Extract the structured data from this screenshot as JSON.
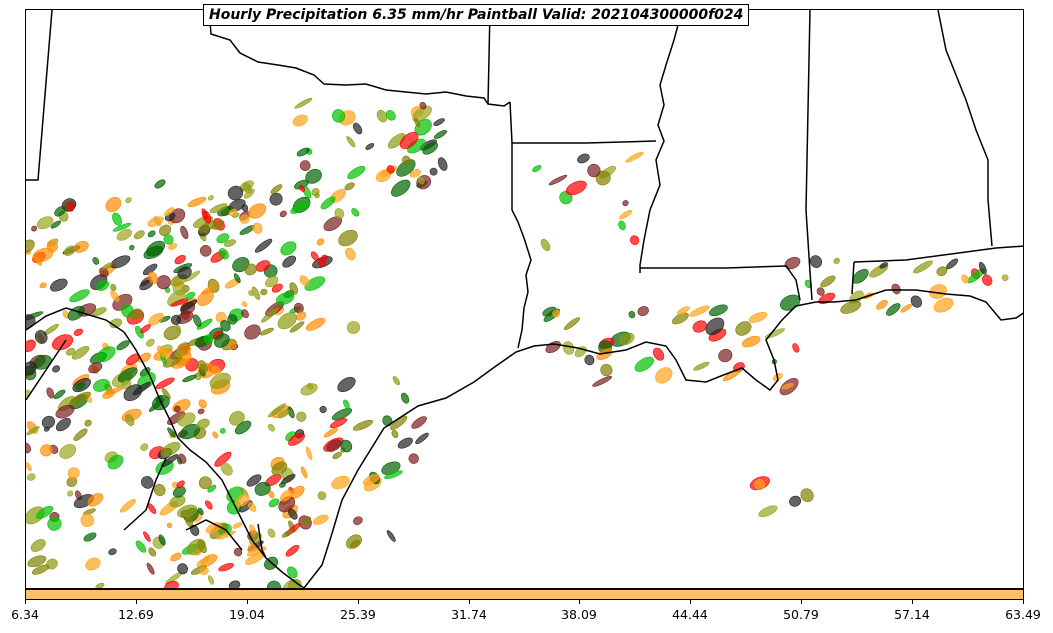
{
  "map": {
    "title": "Hourly Precipitation 6.35 mm/hr Paintball Valid: 202104300000f024",
    "member_colors": [
      "#7b1f1f",
      "#ff0000",
      "#ff8c00",
      "#ffa31a",
      "#8b9a10",
      "#9aa520",
      "#006400",
      "#00c000",
      "#222222",
      "#808000"
    ]
  },
  "colorbar": {
    "color": "#ffc068",
    "tick_labels": [
      "6.34",
      "12.69",
      "19.04",
      "25.39",
      "31.74",
      "38.09",
      "44.44",
      "50.79",
      "57.14",
      "63.49"
    ]
  }
}
